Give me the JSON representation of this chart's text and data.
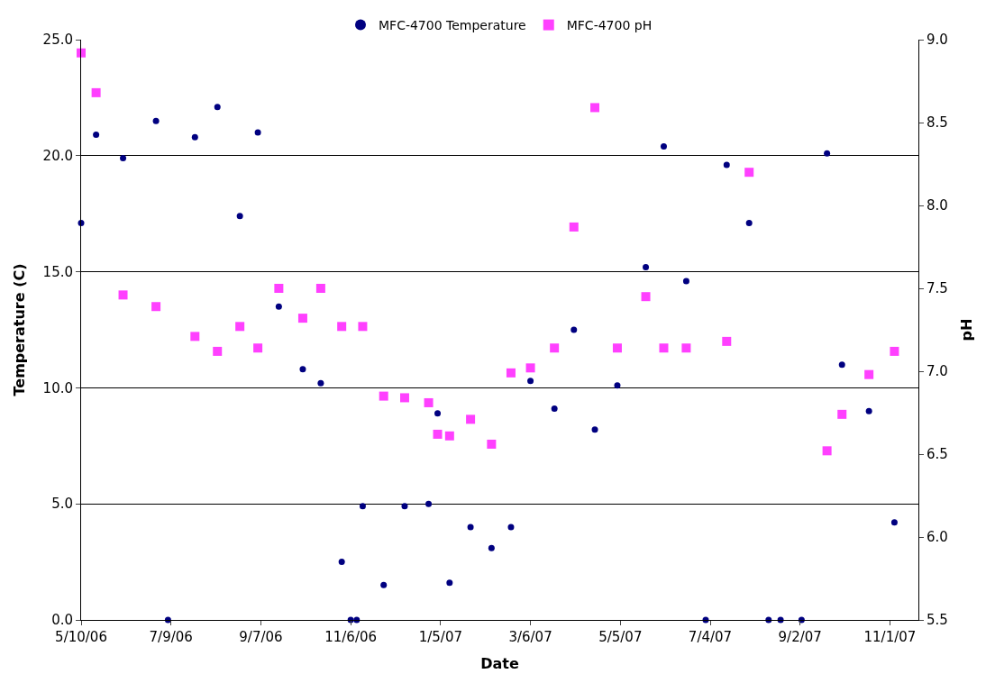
{
  "chart_data": {
    "type": "scatter",
    "xlabel": "Date",
    "ylabel": "Temperature (C)",
    "y2label": "pH",
    "x": [
      "2006-05-10",
      "2006-05-20",
      "2006-06-07",
      "2006-06-29",
      "2006-07-07",
      "2006-07-25",
      "2006-08-09",
      "2006-08-24",
      "2006-09-05",
      "2006-09-19",
      "2006-10-05",
      "2006-10-17",
      "2006-10-31",
      "2006-11-06",
      "2006-11-10",
      "2006-11-14",
      "2006-11-28",
      "2006-12-12",
      "2006-12-28",
      "2007-01-03",
      "2007-01-11",
      "2007-01-25",
      "2007-02-08",
      "2007-02-21",
      "2007-03-06",
      "2007-03-22",
      "2007-04-04",
      "2007-04-18",
      "2007-05-03",
      "2007-05-22",
      "2007-06-03",
      "2007-06-18",
      "2007-07-01",
      "2007-07-15",
      "2007-07-30",
      "2007-08-12",
      "2007-08-20",
      "2007-09-03",
      "2007-09-20",
      "2007-09-30",
      "2007-10-18",
      "2007-11-04"
    ],
    "series": [
      {
        "name": "MFC-4700 Temperature",
        "color": "#000080",
        "marker": "circle",
        "values": [
          17.1,
          20.9,
          19.9,
          21.5,
          0,
          20.8,
          22.1,
          17.4,
          21.0,
          13.5,
          10.8,
          10.2,
          2.5,
          0,
          0,
          4.9,
          1.5,
          4.9,
          5.0,
          8.9,
          1.6,
          4.0,
          3.1,
          4.0,
          10.3,
          9.1,
          12.5,
          8.2,
          10.1,
          15.2,
          20.4,
          14.6,
          0,
          19.6,
          17.1,
          0,
          0,
          0,
          20.1,
          11.0,
          9.0,
          4.2
        ]
      },
      {
        "name": "MFC-4700 pH",
        "color": "#ff40ff",
        "marker": "square",
        "axis": "y2",
        "values": [
          8.92,
          8.68,
          7.46,
          7.39,
          null,
          7.21,
          7.12,
          7.27,
          7.14,
          7.5,
          7.32,
          7.5,
          7.27,
          null,
          null,
          7.27,
          6.85,
          6.84,
          6.81,
          6.62,
          6.61,
          6.71,
          6.56,
          6.99,
          7.02,
          7.14,
          7.87,
          8.59,
          7.14,
          7.45,
          7.14,
          7.14,
          null,
          7.18,
          8.2,
          null,
          null,
          null,
          6.52,
          6.74,
          6.98,
          7.12
        ]
      }
    ],
    "xlim": [
      "2006-05-10",
      "2007-11-20"
    ],
    "xticks": [
      {
        "value": "2006-05-10",
        "label": "5/10/06"
      },
      {
        "value": "2006-07-09",
        "label": "7/9/06"
      },
      {
        "value": "2006-09-07",
        "label": "9/7/06"
      },
      {
        "value": "2006-11-06",
        "label": "11/6/06"
      },
      {
        "value": "2007-01-05",
        "label": "1/5/07"
      },
      {
        "value": "2007-03-06",
        "label": "3/6/07"
      },
      {
        "value": "2007-05-05",
        "label": "5/5/07"
      },
      {
        "value": "2007-07-04",
        "label": "7/4/07"
      },
      {
        "value": "2007-09-02",
        "label": "9/2/07"
      },
      {
        "value": "2007-11-01",
        "label": "11/1/07"
      }
    ],
    "ylim": [
      0,
      25
    ],
    "yticks": [
      {
        "value": 0,
        "label": "0.0"
      },
      {
        "value": 5,
        "label": "5.0"
      },
      {
        "value": 10,
        "label": "10.0"
      },
      {
        "value": 15,
        "label": "15.0"
      },
      {
        "value": 20,
        "label": "20.0"
      },
      {
        "value": 25,
        "label": "25.0"
      }
    ],
    "y2lim": [
      5.5,
      9.0
    ],
    "y2ticks": [
      {
        "value": 5.5,
        "label": "5.5"
      },
      {
        "value": 6.0,
        "label": "6.0"
      },
      {
        "value": 6.5,
        "label": "6.5"
      },
      {
        "value": 7.0,
        "label": "7.0"
      },
      {
        "value": 7.5,
        "label": "7.5"
      },
      {
        "value": 8.0,
        "label": "8.0"
      },
      {
        "value": 8.5,
        "label": "8.5"
      },
      {
        "value": 9.0,
        "label": "9.0"
      }
    ],
    "grid": "y",
    "legend": "top"
  }
}
